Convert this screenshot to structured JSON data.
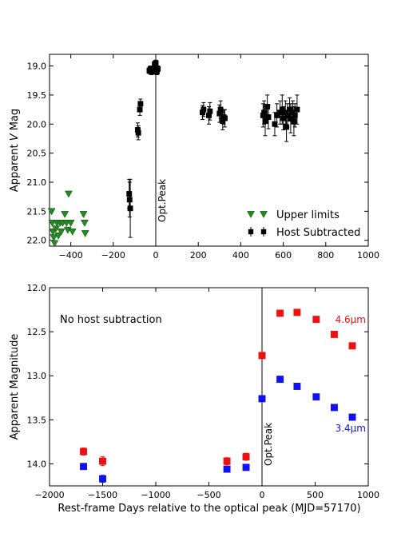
{
  "chart_data": [
    {
      "type": "scatter",
      "ylabel_prefix": "Apparent ",
      "ylabel_italic": "V",
      "ylabel_suffix": " Mag",
      "xlim": [
        -500,
        1000
      ],
      "ylim": [
        22.1,
        18.8
      ],
      "y_inverted": true,
      "xticks": [
        -400,
        -200,
        0,
        200,
        400,
        600,
        800,
        1000
      ],
      "xtick_labels": [
        "−400",
        "−200",
        "0",
        "200",
        "400",
        "600",
        "800",
        "1000"
      ],
      "yticks": [
        19.0,
        19.5,
        20.0,
        20.5,
        21.0,
        21.5,
        22.0
      ],
      "ytick_labels": [
        "19.0",
        "19.5",
        "20.0",
        "20.5",
        "21.0",
        "21.5",
        "22.0"
      ],
      "peak_line_x": 0,
      "peak_label": "Opt.Peak",
      "legend": {
        "placement": "lower-right",
        "entries": [
          {
            "label": "Upper limits",
            "marker": "triangle-down",
            "color": "#228b22"
          },
          {
            "label": "Host Subtracted",
            "marker": "square",
            "color": "#000000"
          }
        ]
      },
      "series": [
        {
          "name": "Upper limits",
          "color": "#228b22",
          "marker": "triangle-down",
          "points": [
            {
              "x": -490,
              "y": 21.5
            },
            {
              "x": -487,
              "y": 21.7
            },
            {
              "x": -484,
              "y": 21.85
            },
            {
              "x": -480,
              "y": 21.95
            },
            {
              "x": -476,
              "y": 22.05
            },
            {
              "x": -470,
              "y": 21.8
            },
            {
              "x": -465,
              "y": 21.7
            },
            {
              "x": -458,
              "y": 21.92
            },
            {
              "x": -450,
              "y": 21.7
            },
            {
              "x": -445,
              "y": 21.85
            },
            {
              "x": -438,
              "y": 21.7
            },
            {
              "x": -428,
              "y": 21.55
            },
            {
              "x": -420,
              "y": 21.7
            },
            {
              "x": -414,
              "y": 21.82
            },
            {
              "x": -410,
              "y": 21.2
            },
            {
              "x": -400,
              "y": 21.7
            },
            {
              "x": -392,
              "y": 21.85
            },
            {
              "x": -340,
              "y": 21.55
            },
            {
              "x": -335,
              "y": 21.7
            },
            {
              "x": -332,
              "y": 21.88
            }
          ]
        },
        {
          "name": "Host Subtracted",
          "color": "#000000",
          "marker": "square",
          "points": [
            {
              "x": -125,
              "y": 21.2,
              "err": 0.25
            },
            {
              "x": -123,
              "y": 21.3,
              "err": 0.3
            },
            {
              "x": -120,
              "y": 21.45,
              "err": 0.5
            },
            {
              "x": -85,
              "y": 20.1,
              "err": 0.12
            },
            {
              "x": -82,
              "y": 20.15,
              "err": 0.12
            },
            {
              "x": -75,
              "y": 19.75,
              "err": 0.1
            },
            {
              "x": -72,
              "y": 19.65,
              "err": 0.08
            },
            {
              "x": -30,
              "y": 19.08,
              "err": 0.05
            },
            {
              "x": -25,
              "y": 19.05,
              "err": 0.05
            },
            {
              "x": -20,
              "y": 19.1,
              "err": 0.05
            },
            {
              "x": -15,
              "y": 19.05,
              "err": 0.05
            },
            {
              "x": -5,
              "y": 18.97,
              "err": 0.05
            },
            {
              "x": 0,
              "y": 18.95,
              "err": 0.05
            },
            {
              "x": 5,
              "y": 19.1,
              "err": 0.05
            },
            {
              "x": 10,
              "y": 19.05,
              "err": 0.05
            },
            {
              "x": 220,
              "y": 19.8,
              "err": 0.12
            },
            {
              "x": 225,
              "y": 19.75,
              "err": 0.12
            },
            {
              "x": 250,
              "y": 19.85,
              "err": 0.15
            },
            {
              "x": 255,
              "y": 19.78,
              "err": 0.15
            },
            {
              "x": 300,
              "y": 19.82,
              "err": 0.15
            },
            {
              "x": 305,
              "y": 19.75,
              "err": 0.15
            },
            {
              "x": 315,
              "y": 19.95,
              "err": 0.15
            },
            {
              "x": 320,
              "y": 19.88,
              "err": 0.12
            },
            {
              "x": 325,
              "y": 19.9,
              "err": 0.15
            },
            {
              "x": 505,
              "y": 19.85,
              "err": 0.2
            },
            {
              "x": 510,
              "y": 19.8,
              "err": 0.2
            },
            {
              "x": 515,
              "y": 19.95,
              "err": 0.25
            },
            {
              "x": 525,
              "y": 19.7,
              "err": 0.2
            },
            {
              "x": 530,
              "y": 19.88,
              "err": 0.2
            },
            {
              "x": 560,
              "y": 20.0,
              "err": 0.2
            },
            {
              "x": 570,
              "y": 19.85,
              "err": 0.2
            },
            {
              "x": 585,
              "y": 19.8,
              "err": 0.2
            },
            {
              "x": 595,
              "y": 19.75,
              "err": 0.25
            },
            {
              "x": 600,
              "y": 19.9,
              "err": 0.2
            },
            {
              "x": 610,
              "y": 19.8,
              "err": 0.2
            },
            {
              "x": 615,
              "y": 20.05,
              "err": 0.25
            },
            {
              "x": 620,
              "y": 19.85,
              "err": 0.2
            },
            {
              "x": 630,
              "y": 19.75,
              "err": 0.2
            },
            {
              "x": 635,
              "y": 19.9,
              "err": 0.25
            },
            {
              "x": 645,
              "y": 19.8,
              "err": 0.2
            },
            {
              "x": 650,
              "y": 19.95,
              "err": 0.25
            },
            {
              "x": 655,
              "y": 19.85,
              "err": 0.2
            },
            {
              "x": 665,
              "y": 19.75,
              "err": 0.25
            }
          ]
        }
      ]
    },
    {
      "type": "scatter",
      "ylabel": "Apparent Magnitude",
      "xlabel": "Rest-frame Days relative to the optical peak (MJD=57170)",
      "xlim": [
        -2000,
        1000
      ],
      "ylim": [
        14.25,
        12.0
      ],
      "y_inverted": true,
      "xticks": [
        -2000,
        -1500,
        -1000,
        -500,
        0,
        500,
        1000
      ],
      "xtick_labels": [
        "−2000",
        "−1500",
        "−1000",
        "−500",
        "0",
        "500",
        "1000"
      ],
      "yticks": [
        12.0,
        12.5,
        13.0,
        13.5,
        14.0
      ],
      "ytick_labels": [
        "12.0",
        "12.5",
        "13.0",
        "13.5",
        "14.0"
      ],
      "peak_line_x": 0,
      "peak_label": "Opt.Peak",
      "annotation": "No host subtraction",
      "series": [
        {
          "name": "4.6μm",
          "label_text": "4.6μm",
          "color": "#ee1111",
          "marker": "square",
          "points": [
            {
              "x": -1680,
              "y": 13.86,
              "err": 0.04
            },
            {
              "x": -1500,
              "y": 13.97,
              "err": 0.05
            },
            {
              "x": -330,
              "y": 13.97,
              "err": 0.04
            },
            {
              "x": -150,
              "y": 13.92,
              "err": 0.04
            },
            {
              "x": 0,
              "y": 12.77
            },
            {
              "x": 170,
              "y": 12.29
            },
            {
              "x": 330,
              "y": 12.28
            },
            {
              "x": 510,
              "y": 12.36
            },
            {
              "x": 680,
              "y": 12.53
            },
            {
              "x": 850,
              "y": 12.66
            }
          ]
        },
        {
          "name": "3.4μm",
          "label_text": "3.4μm",
          "color": "#1111ee",
          "marker": "square",
          "points": [
            {
              "x": -1680,
              "y": 14.03,
              "err": 0.03
            },
            {
              "x": -1500,
              "y": 14.17,
              "err": 0.04
            },
            {
              "x": -330,
              "y": 14.06,
              "err": 0.03
            },
            {
              "x": -150,
              "y": 14.04,
              "err": 0.03
            },
            {
              "x": 0,
              "y": 13.26
            },
            {
              "x": 170,
              "y": 13.04
            },
            {
              "x": 330,
              "y": 13.12
            },
            {
              "x": 510,
              "y": 13.24
            },
            {
              "x": 680,
              "y": 13.36
            },
            {
              "x": 850,
              "y": 13.47
            }
          ]
        }
      ]
    }
  ]
}
